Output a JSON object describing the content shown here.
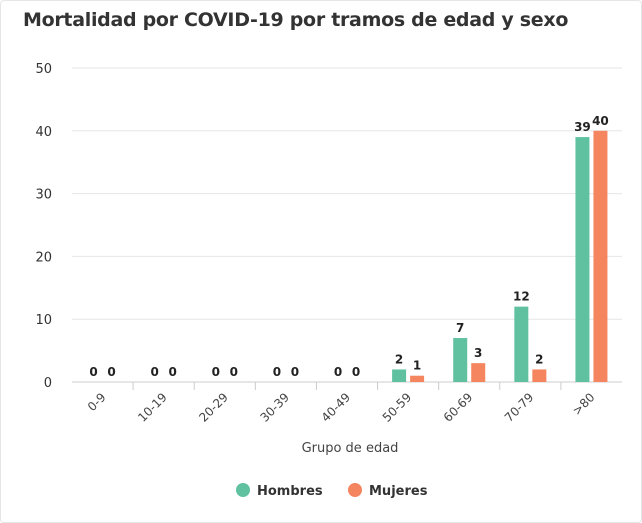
{
  "chart_data": {
    "type": "bar",
    "title": "Mortalidad por COVID-19 por tramos de edad y sexo",
    "xlabel": "Grupo de edad",
    "ylabel": "",
    "categories": [
      "0-9",
      "10-19",
      "20-29",
      "30-39",
      "40-49",
      "50-59",
      "60-69",
      "70-79",
      ">80"
    ],
    "series": [
      {
        "name": "Hombres",
        "color": "#5fc1a0",
        "values": [
          0,
          0,
          0,
          0,
          0,
          2,
          7,
          12,
          39
        ]
      },
      {
        "name": "Mujeres",
        "color": "#f5855e",
        "values": [
          0,
          0,
          0,
          0,
          0,
          1,
          3,
          2,
          40
        ]
      }
    ],
    "ylim": [
      0,
      50
    ],
    "yticks": [
      0,
      10,
      20,
      30,
      40,
      50
    ],
    "grid": true,
    "legend": "bottom-center"
  }
}
